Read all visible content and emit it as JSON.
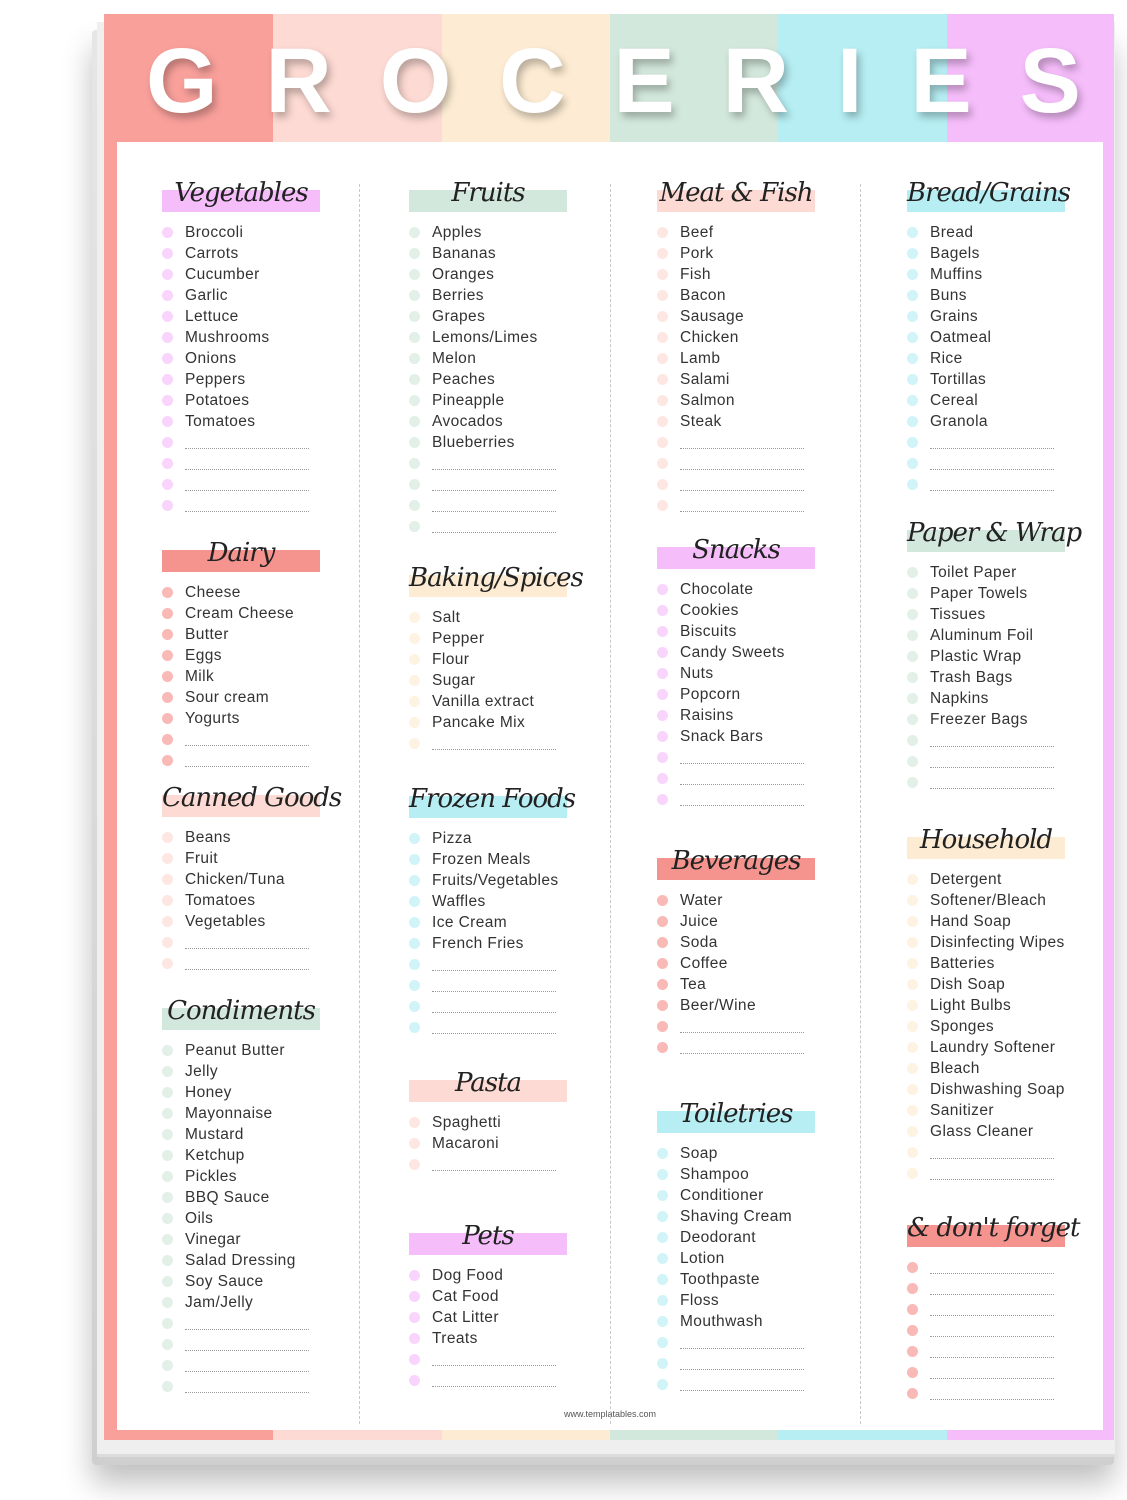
{
  "title_letters": [
    "G",
    "R",
    "O",
    "C",
    "E",
    "R",
    "I",
    "E",
    "S"
  ],
  "palette": [
    "#f9a09b",
    "#fddad3",
    "#fdecd3",
    "#d3e8dc",
    "#b6eef3",
    "#f6bdfb"
  ],
  "footer": "www.templatables.com",
  "columns": [
    [
      {
        "title": "Vegetables",
        "color": "#f6bdfb",
        "items": [
          "Broccoli",
          "Carrots",
          "Cucumber",
          "Garlic",
          "Lettuce",
          "Mushrooms",
          "Onions",
          "Peppers",
          "Potatoes",
          "Tomatoes"
        ],
        "blank_lines": 4
      },
      {
        "title": "Dairy",
        "color": "#f5938e",
        "items": [
          "Cheese",
          "Cream Cheese",
          "Butter",
          "Eggs",
          "Milk",
          "Sour cream",
          "Yogurts"
        ],
        "blank_lines": 2
      },
      {
        "title": "Canned Goods",
        "color": "#fddad3",
        "items": [
          "Beans",
          "Fruit",
          "Chicken/Tuna",
          "Tomatoes",
          "Vegetables"
        ],
        "blank_lines": 2
      },
      {
        "title": "Condiments",
        "color": "#d3e8dc",
        "items": [
          "Peanut Butter",
          "Jelly",
          "Honey",
          "Mayonnaise",
          "Mustard",
          "Ketchup",
          "Pickles",
          "BBQ Sauce",
          "Oils",
          "Vinegar",
          "Salad Dressing",
          "Soy Sauce",
          "Jam/Jelly"
        ],
        "blank_lines": 4
      }
    ],
    [
      {
        "title": "Fruits",
        "color": "#d3e8dc",
        "items": [
          "Apples",
          "Bananas",
          "Oranges",
          "Berries",
          "Grapes",
          "Lemons/Limes",
          "Melon",
          "Peaches",
          "Pineapple",
          "Avocados",
          "Blueberries"
        ],
        "blank_lines": 4
      },
      {
        "title": "Baking/Spices",
        "color": "#fdecd3",
        "items": [
          "Salt",
          "Pepper",
          "Flour",
          "Sugar",
          "Vanilla extract",
          "Pancake Mix"
        ],
        "blank_lines": 1
      },
      {
        "title": "Frozen Foods",
        "color": "#b6eef3",
        "items": [
          "Pizza",
          "Frozen Meals",
          "Fruits/Vegetables",
          "Waffles",
          "Ice Cream",
          "French Fries"
        ],
        "blank_lines": 4
      },
      {
        "title": "Pasta",
        "color": "#fddad3",
        "items": [
          "Spaghetti",
          "Macaroni"
        ],
        "blank_lines": 1
      },
      {
        "title": "Pets",
        "color": "#f6bdfb",
        "items": [
          "Dog Food",
          "Cat Food",
          "Cat Litter",
          "Treats"
        ],
        "blank_lines": 2
      }
    ],
    [
      {
        "title": "Meat & Fish",
        "color": "#fddad3",
        "items": [
          "Beef",
          "Pork",
          "Fish",
          "Bacon",
          "Sausage",
          "Chicken",
          "Lamb",
          "Salami",
          "Salmon",
          "Steak"
        ],
        "blank_lines": 4
      },
      {
        "title": "Snacks",
        "color": "#f6bdfb",
        "items": [
          "Chocolate",
          "Cookies",
          "Biscuits",
          "Candy Sweets",
          "Nuts",
          "Popcorn",
          "Raisins",
          "Snack Bars"
        ],
        "blank_lines": 3
      },
      {
        "title": "Beverages",
        "color": "#f5938e",
        "items": [
          "Water",
          "Juice",
          "Soda",
          "Coffee",
          "Tea",
          "Beer/Wine"
        ],
        "blank_lines": 2
      },
      {
        "title": "Toiletries",
        "color": "#b6eef3",
        "items": [
          "Soap",
          "Shampoo",
          "Conditioner",
          "Shaving Cream",
          "Deodorant",
          "Lotion",
          "Toothpaste",
          "Floss",
          "Mouthwash"
        ],
        "blank_lines": 3
      }
    ],
    [
      {
        "title": "Bread/Grains",
        "color": "#b6eef3",
        "items": [
          "Bread",
          "Bagels",
          "Muffins",
          "Buns",
          "Grains",
          "Oatmeal",
          "Rice",
          "Tortillas",
          "Cereal",
          "Granola"
        ],
        "blank_lines": 3
      },
      {
        "title": "Paper & Wrap",
        "color": "#d3e8dc",
        "items": [
          "Toilet Paper",
          "Paper Towels",
          "Tissues",
          "Aluminum Foil",
          "Plastic Wrap",
          "Trash Bags",
          "Napkins",
          "Freezer Bags"
        ],
        "blank_lines": 3
      },
      {
        "title": "Household",
        "color": "#fdecd3",
        "items": [
          "Detergent",
          "Softener/Bleach",
          "Hand Soap",
          "Disinfecting Wipes",
          "Batteries",
          "Dish Soap",
          "Light Bulbs",
          "Sponges",
          "Laundry Softener",
          "Bleach",
          "Dishwashing Soap",
          "Sanitizer",
          "Glass Cleaner"
        ],
        "blank_lines": 2
      },
      {
        "title": "& don't forget",
        "color": "#f5938e",
        "items": [],
        "blank_lines": 7
      }
    ]
  ]
}
